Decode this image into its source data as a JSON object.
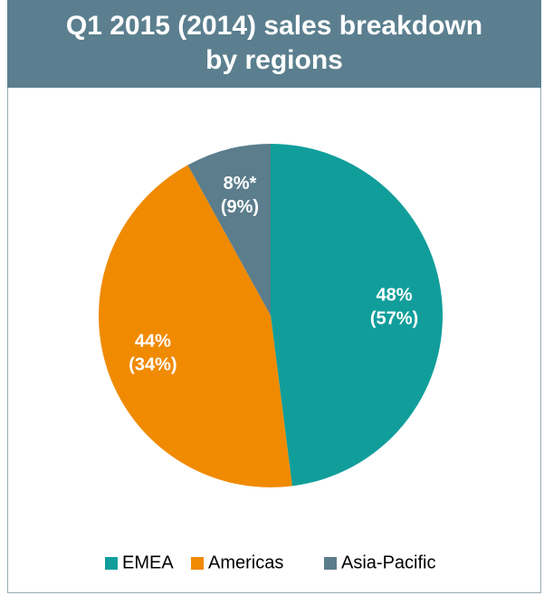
{
  "chart_data": {
    "type": "pie",
    "title": "Q1 2015 (2014) sales breakdown\nby regions",
    "categories": [
      "EMEA",
      "Americas",
      "Asia-Pacific"
    ],
    "colors": [
      "#119e9b",
      "#f08a00",
      "#5b7d8c"
    ],
    "series": [
      {
        "values": [
          48,
          44,
          8
        ],
        "value_labels": [
          "48%",
          "44%",
          "8%*"
        ]
      },
      {
        "values": [
          57,
          34,
          9
        ],
        "value_labels": [
          "(57%)",
          "(34%)",
          "(9%)"
        ]
      }
    ],
    "legend": "bottom"
  }
}
